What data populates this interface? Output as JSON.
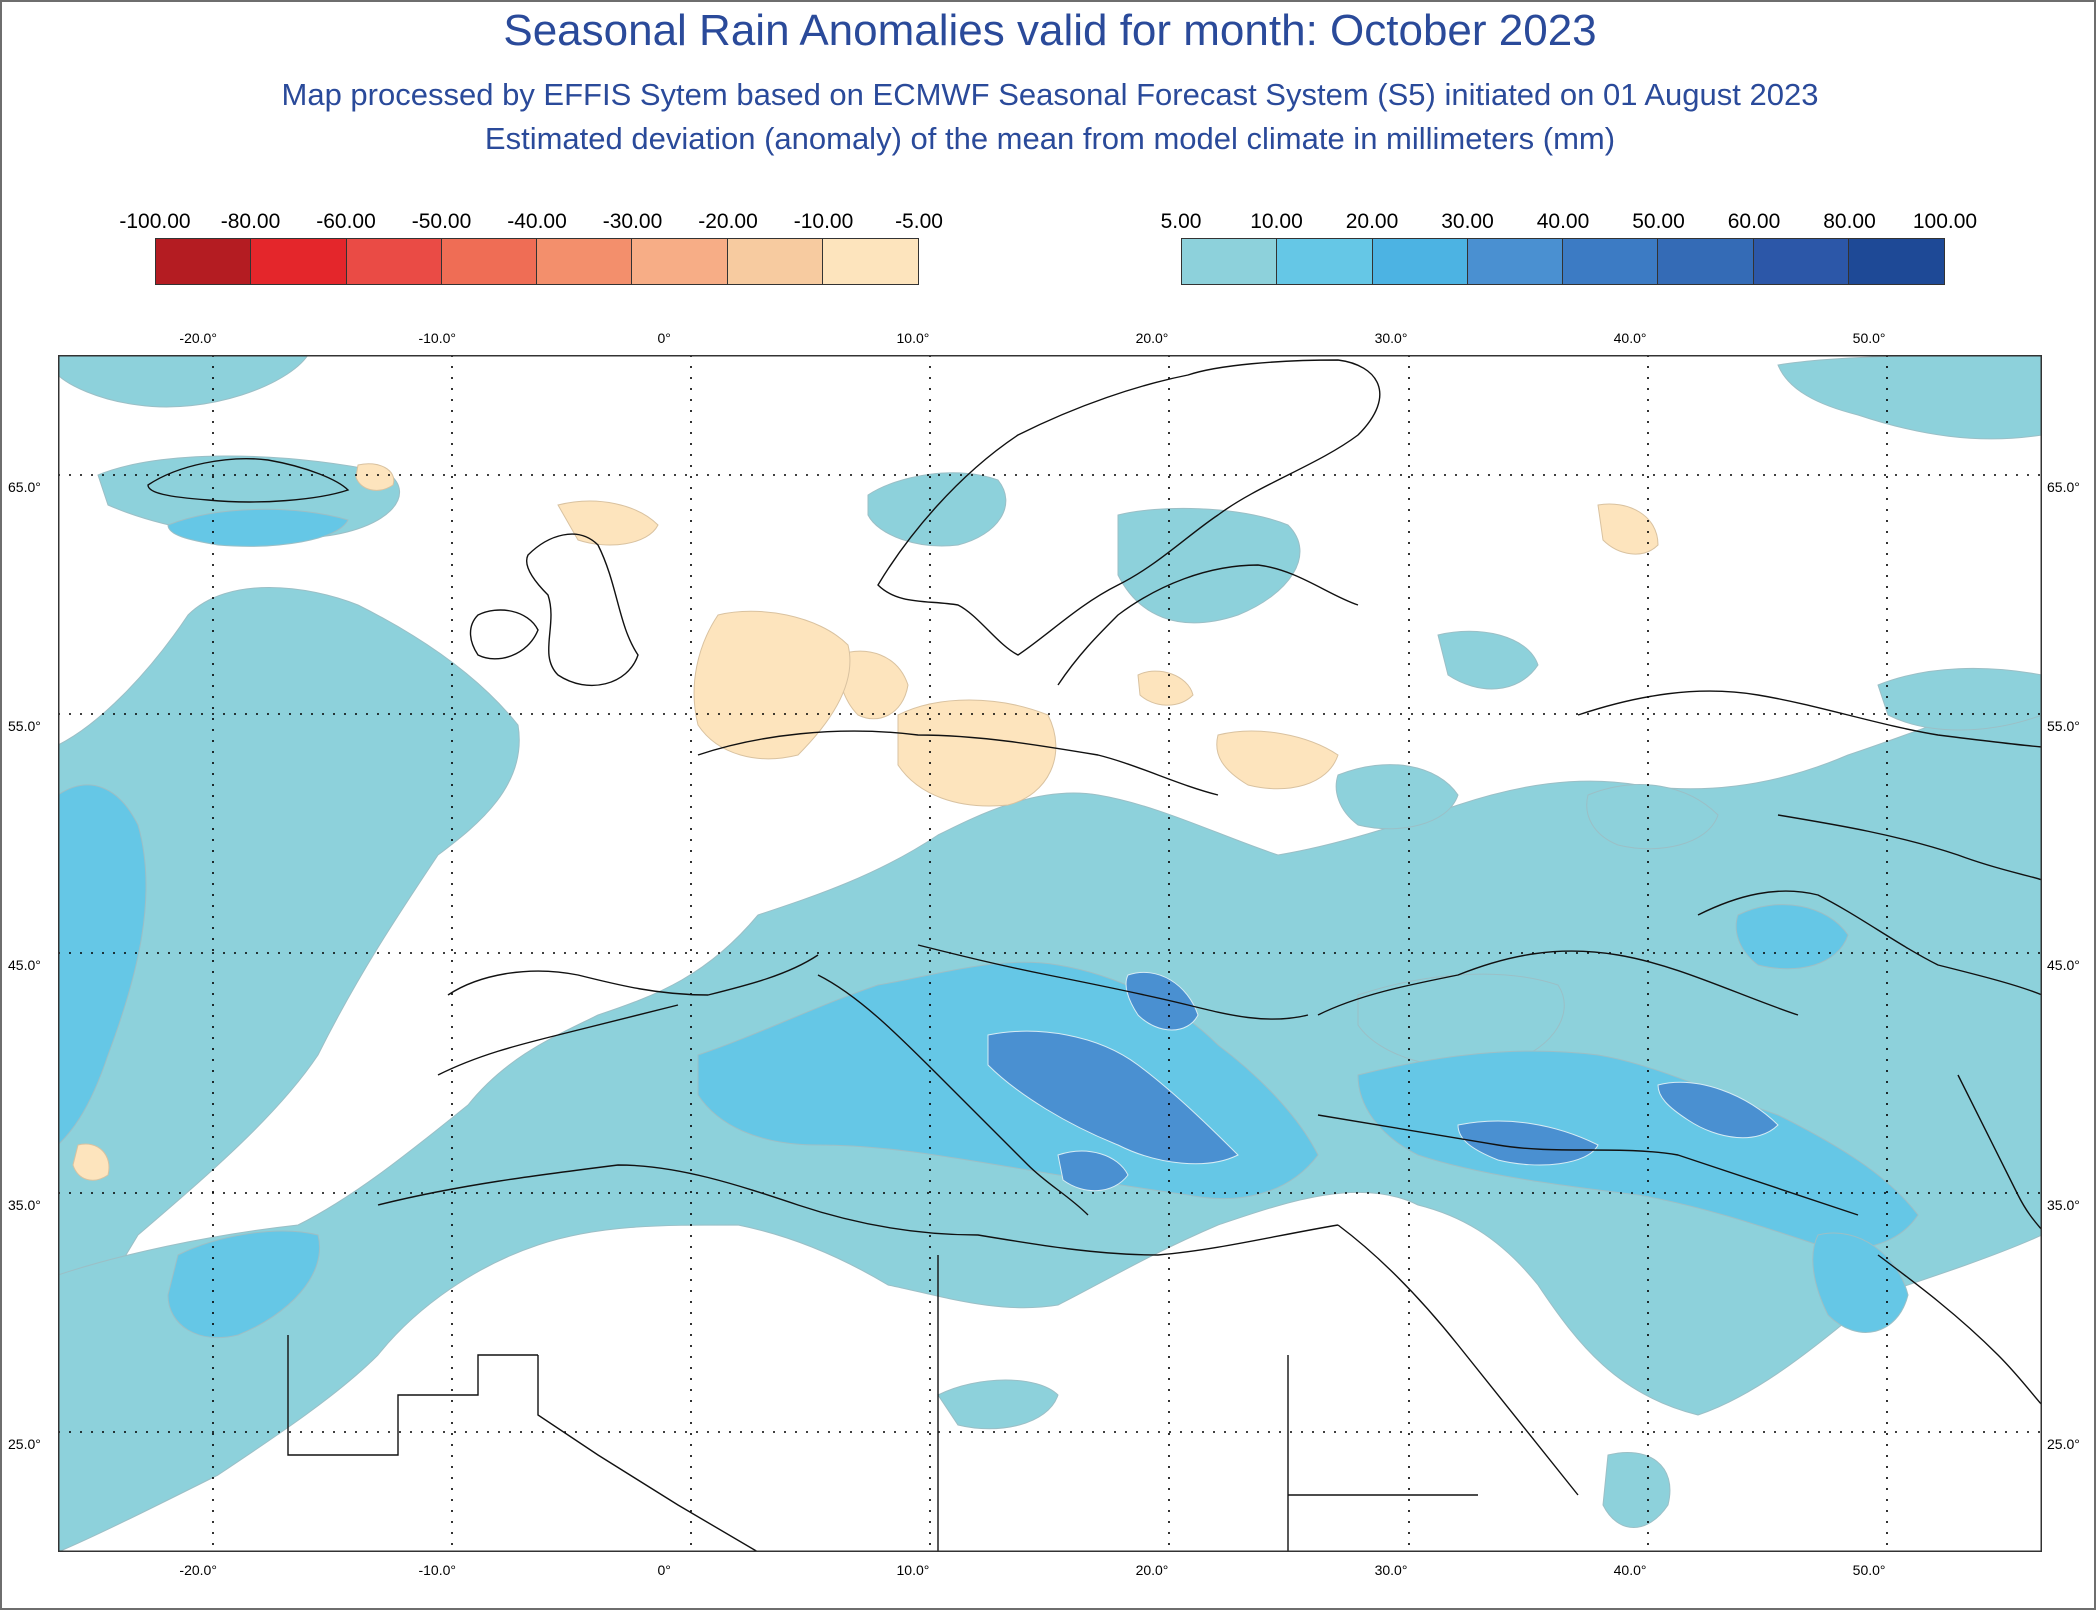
{
  "header": {
    "title": "Seasonal Rain Anomalies valid for month: October 2023",
    "subtitle1": "Map processed by EFFIS Sytem based on ECMWF Seasonal Forecast System (S5) initiated on 01 August 2023",
    "subtitle2": "Estimated deviation (anomaly) of the mean from model climate in millimeters (mm)"
  },
  "legend_negative": {
    "labels": [
      "-100.00",
      "-80.00",
      "-60.00",
      "-50.00",
      "-40.00",
      "-30.00",
      "-20.00",
      "-10.00",
      "-5.00"
    ],
    "colors": [
      "#b41c22",
      "#e4262b",
      "#ea4b45",
      "#ef6d55",
      "#f38f6c",
      "#f7ad86",
      "#f7cba0",
      "#fde4bd"
    ]
  },
  "legend_positive": {
    "labels": [
      "5.00",
      "10.00",
      "20.00",
      "30.00",
      "40.00",
      "50.00",
      "60.00",
      "80.00",
      "100.00"
    ],
    "colors": [
      "#8dd1db",
      "#65c7e6",
      "#4cb3e3",
      "#4a90d1",
      "#3c7bc4",
      "#346bb6",
      "#2c57a8",
      "#1e4996"
    ]
  },
  "map": {
    "lon_range": [
      -26,
      57
    ],
    "lat_range": [
      20.5,
      70.5
    ],
    "lon_ticks": [
      "-20.0°",
      "-10.0°",
      "0°",
      "10.0°",
      "20.0°",
      "30.0°",
      "40.0°",
      "50.0°"
    ],
    "lon_values": [
      -20,
      -10,
      0,
      10,
      20,
      30,
      40,
      50
    ],
    "lat_ticks": [
      "65.0°",
      "55.0°",
      "45.0°",
      "35.0°",
      "25.0°"
    ],
    "lat_values": [
      65,
      55,
      45,
      35,
      25
    ]
  }
}
